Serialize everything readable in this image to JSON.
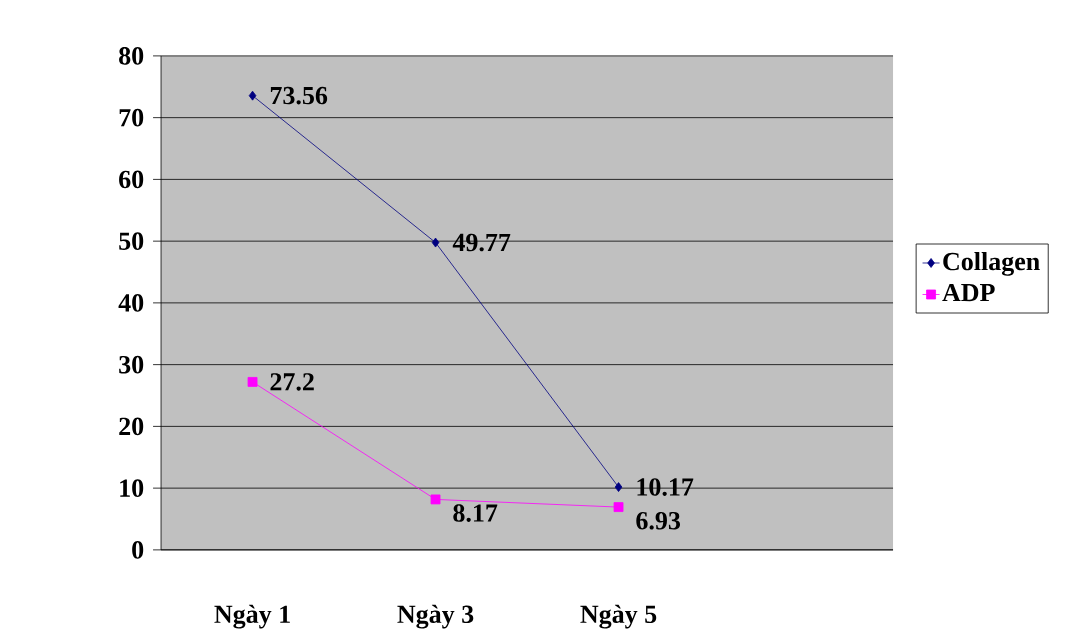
{
  "chart_data": {
    "type": "line",
    "categories": [
      "Ngày 1",
      "Ngày 3",
      "Ngày 5",
      null
    ],
    "series": [
      {
        "name": "Collagen",
        "color": "#000080",
        "marker": "diamond",
        "values": [
          73.56,
          49.77,
          10.17,
          null
        ]
      },
      {
        "name": "ADP",
        "color": "#ff00ff",
        "marker": "square",
        "values": [
          27.2,
          8.17,
          6.93,
          null
        ]
      }
    ],
    "ylim": [
      0,
      80
    ],
    "yticks": [
      0,
      10,
      20,
      30,
      40,
      50,
      60,
      70,
      80
    ],
    "grid": "y",
    "legend": "right",
    "data_labels": true
  }
}
